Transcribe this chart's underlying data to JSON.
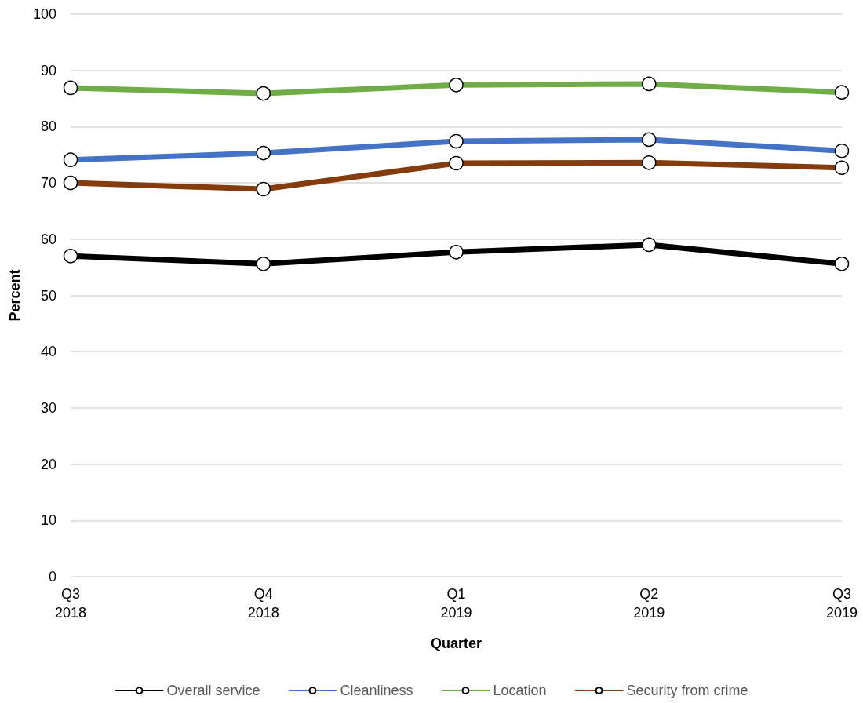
{
  "chart_data": {
    "type": "line",
    "xlabel": "Quarter",
    "ylabel": "Percent",
    "categories": [
      "Q3\n2018",
      "Q4\n2018",
      "Q1\n2019",
      "Q2\n2019",
      "Q3\n2019"
    ],
    "series": [
      {
        "name": "Overall service",
        "color": "#000000",
        "values": [
          57.0,
          55.6,
          57.7,
          59.0,
          55.6
        ]
      },
      {
        "name": "Cleanliness",
        "color": "#4472c4",
        "values": [
          74.1,
          75.3,
          77.4,
          77.7,
          75.7
        ]
      },
      {
        "name": "Location",
        "color": "#70ad47",
        "values": [
          86.9,
          85.9,
          87.4,
          87.6,
          86.1
        ]
      },
      {
        "name": "Security from crime",
        "color": "#843c0c",
        "values": [
          70.0,
          68.9,
          73.5,
          73.6,
          72.7
        ]
      }
    ],
    "ylim": [
      0,
      100
    ],
    "yticks": [
      0,
      10,
      20,
      30,
      40,
      50,
      60,
      70,
      80,
      90,
      100
    ],
    "grid": "y",
    "legend": "bottom",
    "marker": "circle",
    "line_style": "solid"
  }
}
